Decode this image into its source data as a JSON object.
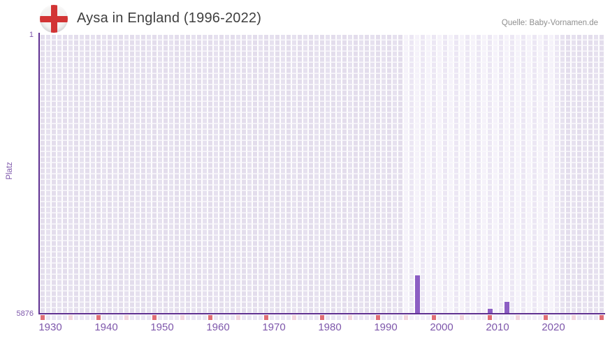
{
  "header": {
    "title": "Aysa in England (1996-2022)",
    "source": "Quelle: Baby-Vornamen.de",
    "flag": "england-flag"
  },
  "chart_data": {
    "type": "bar",
    "title": "Aysa in England (1996-2022)",
    "xlabel": "",
    "ylabel": "Platz",
    "grid": true,
    "legend": false,
    "y_axis": {
      "top_tick": "1",
      "bottom_tick": "5876",
      "min": 1,
      "max": 5876,
      "inverted": true
    },
    "x_axis": {
      "first_year": 1929,
      "last_year": 2029,
      "decade_labels": [
        "1930",
        "1940",
        "1950",
        "1960",
        "1970",
        "1980",
        "1990",
        "2000",
        "2010",
        "2020"
      ],
      "major_tick_years": [
        1929,
        1939,
        1949,
        1959,
        1969,
        1979,
        1989,
        1999,
        2009,
        2019,
        2029
      ],
      "minor_tick_years": [
        1934,
        1944,
        1954,
        1964,
        1974,
        1984,
        1994,
        2004,
        2014,
        2024
      ]
    },
    "highlight_period": {
      "start_year": 1994,
      "end_year": 2021
    },
    "series": [
      {
        "name": "Platz",
        "points": [
          {
            "year": 1996,
            "rank": 5064
          },
          {
            "year": 2009,
            "rank": 5769
          },
          {
            "year": 2012,
            "rank": 5622
          }
        ]
      }
    ],
    "colors": {
      "bar": "#8c5ec4",
      "axis": "#5f3091",
      "label_text": "#7e57ab",
      "title_text": "#3f3f3f",
      "source_text": "#8f8f8f",
      "flag_red": "#d23434",
      "grid_dark_a": "#e3ddec",
      "grid_dark_b": "#e6e1ef",
      "grid_light_a": "#f5f2fa",
      "grid_light_b": "#ece7f4",
      "tick_major": "#e06e76",
      "tick_minor": "#f2d5de",
      "tick_default_dark": "#eae6f3",
      "tick_default_light": "#f2eff8"
    }
  }
}
